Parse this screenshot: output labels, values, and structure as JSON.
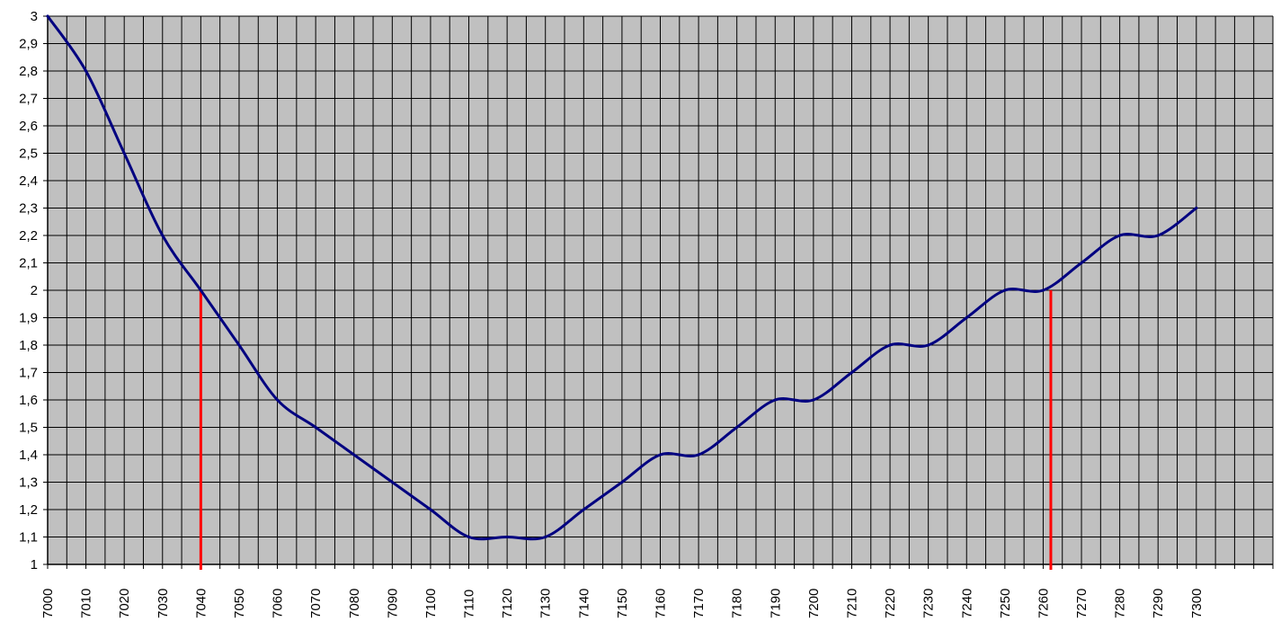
{
  "chart_data": {
    "type": "line",
    "title": "",
    "xlabel": "",
    "ylabel": "",
    "xlim": [
      7000,
      7320
    ],
    "ylim": [
      1,
      3
    ],
    "grid": true,
    "x_ticks": [
      "7000",
      "7010",
      "7020",
      "7030",
      "7040",
      "7050",
      "7060",
      "7070",
      "7080",
      "7090",
      "7100",
      "7110",
      "7120",
      "7130",
      "7140",
      "7150",
      "7160",
      "7170",
      "7180",
      "7190",
      "7200",
      "7210",
      "7220",
      "7230",
      "7240",
      "7250",
      "7260",
      "7270",
      "7280",
      "7290",
      "7300"
    ],
    "y_ticks": [
      "1",
      "1,1",
      "1,2",
      "1,3",
      "1,4",
      "1,5",
      "1,6",
      "1,7",
      "1,8",
      "1,9",
      "2",
      "2,1",
      "2,2",
      "2,3",
      "2,4",
      "2,5",
      "2,6",
      "2,7",
      "2,8",
      "2,9",
      "3"
    ],
    "series": [
      {
        "x": [
          7000,
          7010,
          7020,
          7030,
          7040,
          7050,
          7060,
          7070,
          7080,
          7090,
          7100,
          7110,
          7120,
          7130,
          7140,
          7150,
          7160,
          7170,
          7180,
          7190,
          7200,
          7210,
          7220,
          7230,
          7240,
          7250,
          7260,
          7270,
          7280,
          7290,
          7300
        ],
        "y": [
          3,
          2.8,
          2.5,
          2.2,
          2,
          1.8,
          1.6,
          1.5,
          1.4,
          1.3,
          1.2,
          1.1,
          1.1,
          1.1,
          1.2,
          1.3,
          1.4,
          1.4,
          1.5,
          1.6,
          1.6,
          1.7,
          1.8,
          1.8,
          1.9,
          2,
          2,
          2.1,
          2.2,
          2.2,
          2.3
        ]
      }
    ],
    "reference_lines": [
      {
        "x": 7040,
        "y": 2
      },
      {
        "x": 7262,
        "y": 2
      }
    ],
    "colors": {
      "plot_background": "#c0c0c0",
      "grid": "#000000",
      "line": "#000080",
      "reference": "#ff0000"
    }
  }
}
